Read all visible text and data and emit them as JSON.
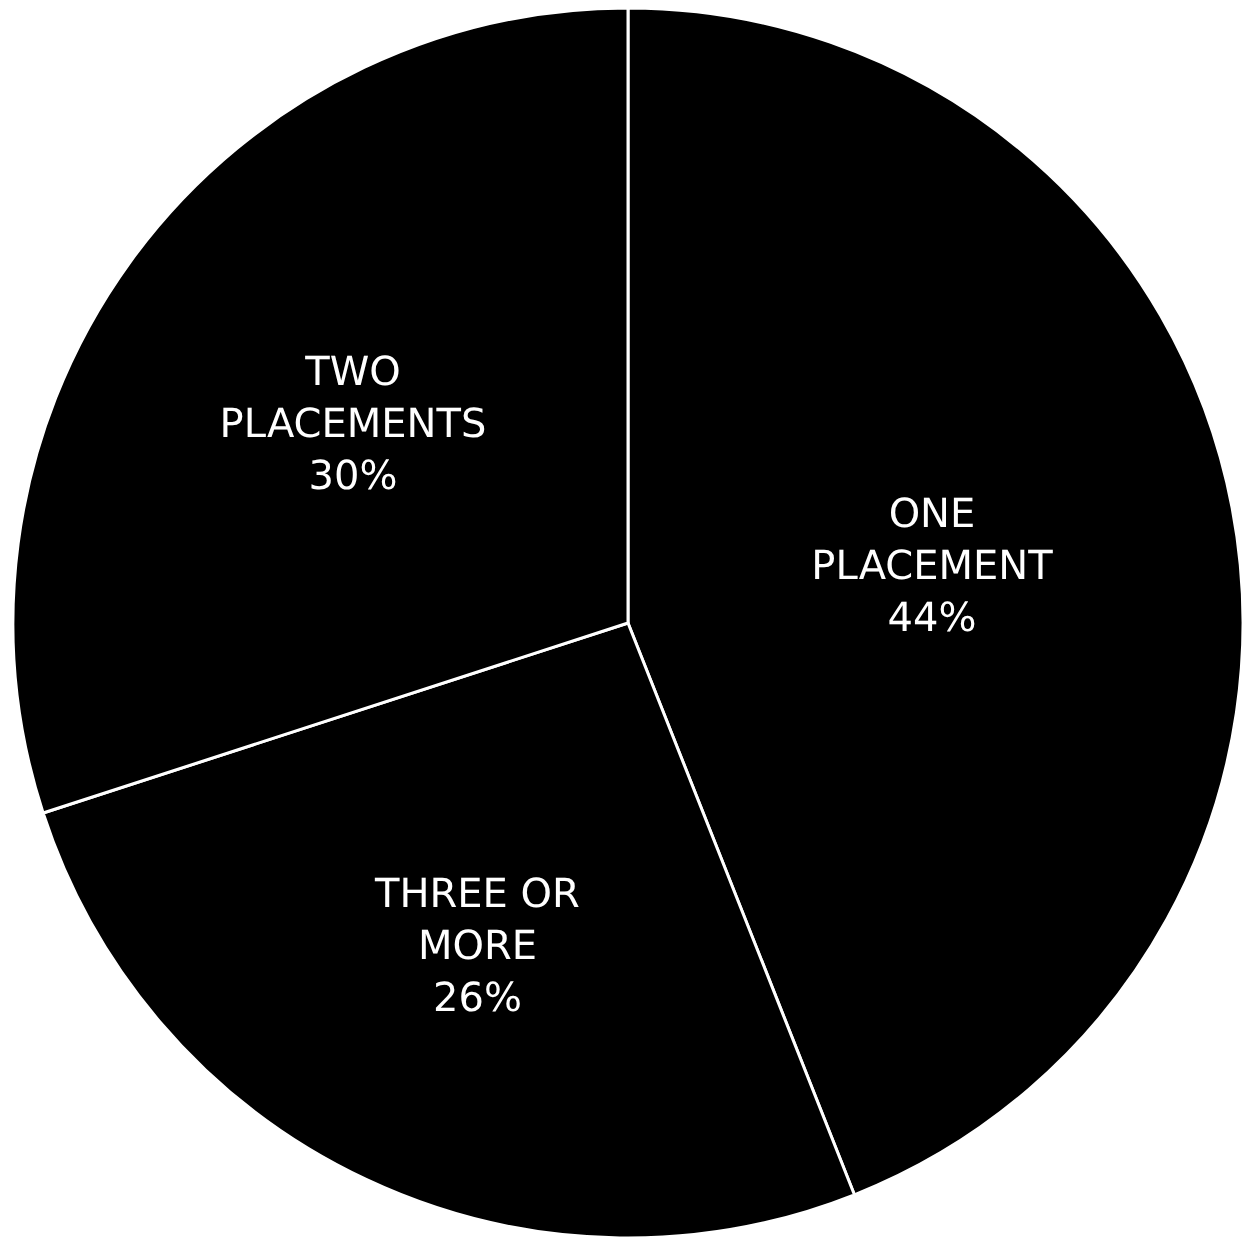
{
  "chart_data": {
    "type": "pie",
    "categories": [
      "ONE\nPLACEMENT",
      "THREE OR\nMORE",
      "TWO\nPLACEMENTS"
    ],
    "values": [
      44,
      26,
      30
    ],
    "value_labels": [
      "44%",
      "26%",
      "30%"
    ],
    "colors": [
      "#000000",
      "#000000",
      "#000000"
    ],
    "legend": false
  }
}
